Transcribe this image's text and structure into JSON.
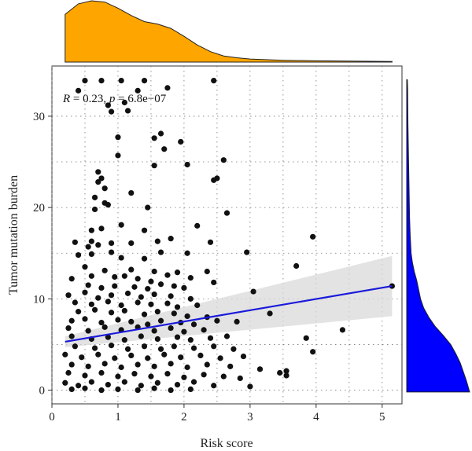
{
  "chart_data": {
    "type": "scatter",
    "xlabel": "Risk score",
    "ylabel": "Tumor mutation burden",
    "xlim": [
      0,
      5.3
    ],
    "ylim": [
      -1.5,
      35.5
    ],
    "x_ticks": [
      "0",
      "1",
      "2",
      "3",
      "4",
      "5"
    ],
    "y_ticks": [
      "0",
      "10",
      "20",
      "30"
    ],
    "grid": true,
    "annotation": {
      "r_var": "R",
      "r_text": " = 0.23, ",
      "p_var": "p",
      "p_text": " = 6.8e−07"
    },
    "regression": {
      "x": [
        0.2,
        5.15
      ],
      "y": [
        5.3,
        11.4
      ],
      "ci_lower_end": 8.1,
      "ci_upper_end": 14.7,
      "ci_lower_start": 4.7,
      "ci_upper_start": 5.9
    },
    "colors": {
      "points": "#111111",
      "line": "#1a1adb",
      "ci_band": "#d9d9d9",
      "top_density": "#FFA500",
      "right_density": "#0000FF"
    },
    "top_density": {
      "x": [
        0.2,
        0.4,
        0.6,
        0.8,
        1.0,
        1.2,
        1.4,
        1.6,
        1.8,
        2.0,
        2.2,
        2.4,
        2.6,
        2.8,
        3.0,
        3.5,
        4.0,
        4.5,
        5.15
      ],
      "density": [
        0.78,
        0.95,
        1.0,
        0.98,
        0.88,
        0.76,
        0.66,
        0.62,
        0.55,
        0.42,
        0.28,
        0.17,
        0.1,
        0.07,
        0.05,
        0.03,
        0.02,
        0.015,
        0.01
      ]
    },
    "right_density": {
      "y": [
        -0.2,
        1,
        2,
        3,
        4,
        5,
        6,
        7,
        8,
        9,
        10,
        11,
        12,
        13,
        14,
        15,
        17,
        19,
        21,
        23,
        25,
        27,
        29,
        31,
        33,
        34
      ],
      "density": [
        1.0,
        0.95,
        0.9,
        0.85,
        0.78,
        0.7,
        0.58,
        0.45,
        0.35,
        0.27,
        0.22,
        0.19,
        0.16,
        0.12,
        0.09,
        0.07,
        0.055,
        0.045,
        0.04,
        0.035,
        0.03,
        0.025,
        0.02,
        0.018,
        0.015,
        0.01
      ]
    },
    "points": [
      [
        0.5,
        33.9
      ],
      [
        0.75,
        33.9
      ],
      [
        1.05,
        33.9
      ],
      [
        1.4,
        33.9
      ],
      [
        2.45,
        33.9
      ],
      [
        0.4,
        32.8
      ],
      [
        1.3,
        32.8
      ],
      [
        1.75,
        33.1
      ],
      [
        0.85,
        31.2
      ],
      [
        0.9,
        30.5
      ],
      [
        1.1,
        31.5
      ],
      [
        1.15,
        30.6
      ],
      [
        1.0,
        27.7
      ],
      [
        1.65,
        28.1
      ],
      [
        1.55,
        27.6
      ],
      [
        1.7,
        26.4
      ],
      [
        1.95,
        27.2
      ],
      [
        1.0,
        25.7
      ],
      [
        2.05,
        24.7
      ],
      [
        2.6,
        25.2
      ],
      [
        1.55,
        24.6
      ],
      [
        0.7,
        23.9
      ],
      [
        0.75,
        23.2
      ],
      [
        0.7,
        22.8
      ],
      [
        0.8,
        22.1
      ],
      [
        0.65,
        21.1
      ],
      [
        1.2,
        21.6
      ],
      [
        2.45,
        23.0
      ],
      [
        2.5,
        23.2
      ],
      [
        0.8,
        20.5
      ],
      [
        0.85,
        20.3
      ],
      [
        1.45,
        20.0
      ],
      [
        2.65,
        19.4
      ],
      [
        0.65,
        19.8
      ],
      [
        0.6,
        17.5
      ],
      [
        0.75,
        17.7
      ],
      [
        1.05,
        18.1
      ],
      [
        1.4,
        17.5
      ],
      [
        2.2,
        18.0
      ],
      [
        0.35,
        16.2
      ],
      [
        0.6,
        16.3
      ],
      [
        0.55,
        15.7
      ],
      [
        0.7,
        15.9
      ],
      [
        0.9,
        16.1
      ],
      [
        1.2,
        16.1
      ],
      [
        1.6,
        16.3
      ],
      [
        1.8,
        16.6
      ],
      [
        2.4,
        16.2
      ],
      [
        3.95,
        16.8
      ],
      [
        0.4,
        14.8
      ],
      [
        0.6,
        14.9
      ],
      [
        0.9,
        15.1
      ],
      [
        1.05,
        14.5
      ],
      [
        1.4,
        14.4
      ],
      [
        1.65,
        15.1
      ],
      [
        2.05,
        15.0
      ],
      [
        2.95,
        15.1
      ],
      [
        0.5,
        13.5
      ],
      [
        0.8,
        13.1
      ],
      [
        1.2,
        13.2
      ],
      [
        1.55,
        13.0
      ],
      [
        1.9,
        12.9
      ],
      [
        2.35,
        13.0
      ],
      [
        3.7,
        13.6
      ],
      [
        0.3,
        12.2
      ],
      [
        0.6,
        12.5
      ],
      [
        0.95,
        12.4
      ],
      [
        1.1,
        12.5
      ],
      [
        1.3,
        12.2
      ],
      [
        1.5,
        11.9
      ],
      [
        1.75,
        12.6
      ],
      [
        2.1,
        12.3
      ],
      [
        2.45,
        11.8
      ],
      [
        0.55,
        11.5
      ],
      [
        0.75,
        11.2
      ],
      [
        0.95,
        11.4
      ],
      [
        1.25,
        11.3
      ],
      [
        1.45,
        11.1
      ],
      [
        1.65,
        11.6
      ],
      [
        1.85,
        11.4
      ],
      [
        2.0,
        11.2
      ],
      [
        0.25,
        10.4
      ],
      [
        0.5,
        10.7
      ],
      [
        0.7,
        10.1
      ],
      [
        0.9,
        10.4
      ],
      [
        1.15,
        10.6
      ],
      [
        1.35,
        10.2
      ],
      [
        1.55,
        10.5
      ],
      [
        1.8,
        10.3
      ],
      [
        2.1,
        10.0
      ],
      [
        3.05,
        10.8
      ],
      [
        5.15,
        11.4
      ],
      [
        0.35,
        9.6
      ],
      [
        0.6,
        9.4
      ],
      [
        0.85,
        9.7
      ],
      [
        1.05,
        9.3
      ],
      [
        1.3,
        9.6
      ],
      [
        1.5,
        9.4
      ],
      [
        1.75,
        9.5
      ],
      [
        1.9,
        9.1
      ],
      [
        2.2,
        9.3
      ],
      [
        3.3,
        8.4
      ],
      [
        2.8,
        7.5
      ],
      [
        0.4,
        8.6
      ],
      [
        0.65,
        8.8
      ],
      [
        0.9,
        8.5
      ],
      [
        1.1,
        8.7
      ],
      [
        1.4,
        8.3
      ],
      [
        1.6,
        8.6
      ],
      [
        1.85,
        8.4
      ],
      [
        2.05,
        8.1
      ],
      [
        2.35,
        8.0
      ],
      [
        0.3,
        7.6
      ],
      [
        0.5,
        7.8
      ],
      [
        0.75,
        7.4
      ],
      [
        1.0,
        7.7
      ],
      [
        1.2,
        7.5
      ],
      [
        1.45,
        7.2
      ],
      [
        1.65,
        7.6
      ],
      [
        1.95,
        7.4
      ],
      [
        2.15,
        7.2
      ],
      [
        2.5,
        7.6
      ],
      [
        0.25,
        6.8
      ],
      [
        0.55,
        6.5
      ],
      [
        0.8,
        6.9
      ],
      [
        1.05,
        6.6
      ],
      [
        1.3,
        6.9
      ],
      [
        1.55,
        6.5
      ],
      [
        1.8,
        6.8
      ],
      [
        2.0,
        6.4
      ],
      [
        2.3,
        6.6
      ],
      [
        4.4,
        6.6
      ],
      [
        0.3,
        5.9
      ],
      [
        0.6,
        5.6
      ],
      [
        0.85,
        5.8
      ],
      [
        1.1,
        5.5
      ],
      [
        1.35,
        5.9
      ],
      [
        1.6,
        5.6
      ],
      [
        1.9,
        5.8
      ],
      [
        2.1,
        5.5
      ],
      [
        2.4,
        5.7
      ],
      [
        2.65,
        5.9
      ],
      [
        3.85,
        5.7
      ],
      [
        0.35,
        4.8
      ],
      [
        0.65,
        4.6
      ],
      [
        0.9,
        4.9
      ],
      [
        1.15,
        4.5
      ],
      [
        1.4,
        4.8
      ],
      [
        1.65,
        4.5
      ],
      [
        1.85,
        4.8
      ],
      [
        2.15,
        4.6
      ],
      [
        2.45,
        4.8
      ],
      [
        2.75,
        4.5
      ],
      [
        3.95,
        4.2
      ],
      [
        0.2,
        3.9
      ],
      [
        0.45,
        3.6
      ],
      [
        0.7,
        3.9
      ],
      [
        0.95,
        3.5
      ],
      [
        1.2,
        3.8
      ],
      [
        1.45,
        3.5
      ],
      [
        1.7,
        3.9
      ],
      [
        1.95,
        3.6
      ],
      [
        2.25,
        3.8
      ],
      [
        2.55,
        3.5
      ],
      [
        2.9,
        3.7
      ],
      [
        0.3,
        2.8
      ],
      [
        0.55,
        2.6
      ],
      [
        0.8,
        2.9
      ],
      [
        1.05,
        2.5
      ],
      [
        1.3,
        2.8
      ],
      [
        1.55,
        2.6
      ],
      [
        1.8,
        2.9
      ],
      [
        2.05,
        2.5
      ],
      [
        2.35,
        2.8
      ],
      [
        2.7,
        2.6
      ],
      [
        3.15,
        2.3
      ],
      [
        3.45,
        1.9
      ],
      [
        3.55,
        2.1
      ],
      [
        0.25,
        1.9
      ],
      [
        0.5,
        1.6
      ],
      [
        0.75,
        1.9
      ],
      [
        1.0,
        1.5
      ],
      [
        1.25,
        1.8
      ],
      [
        1.5,
        1.5
      ],
      [
        1.75,
        1.8
      ],
      [
        2.0,
        1.4
      ],
      [
        2.3,
        1.7
      ],
      [
        2.6,
        1.5
      ],
      [
        2.85,
        1.3
      ],
      [
        3.55,
        1.6
      ],
      [
        0.2,
        0.8
      ],
      [
        0.4,
        0.5
      ],
      [
        0.6,
        0.9
      ],
      [
        0.85,
        0.6
      ],
      [
        1.1,
        0.9
      ],
      [
        1.35,
        0.5
      ],
      [
        1.6,
        0.8
      ],
      [
        1.9,
        0.6
      ],
      [
        2.15,
        0.9
      ],
      [
        2.45,
        0.5
      ],
      [
        3.0,
        0.4
      ],
      [
        0.3,
        0.1
      ],
      [
        0.5,
        0.2
      ],
      [
        0.75,
        0.0
      ],
      [
        1.0,
        0.1
      ],
      [
        1.3,
        0.0
      ],
      [
        1.55,
        0.2
      ],
      [
        1.8,
        0.0
      ],
      [
        2.1,
        0.1
      ]
    ]
  }
}
